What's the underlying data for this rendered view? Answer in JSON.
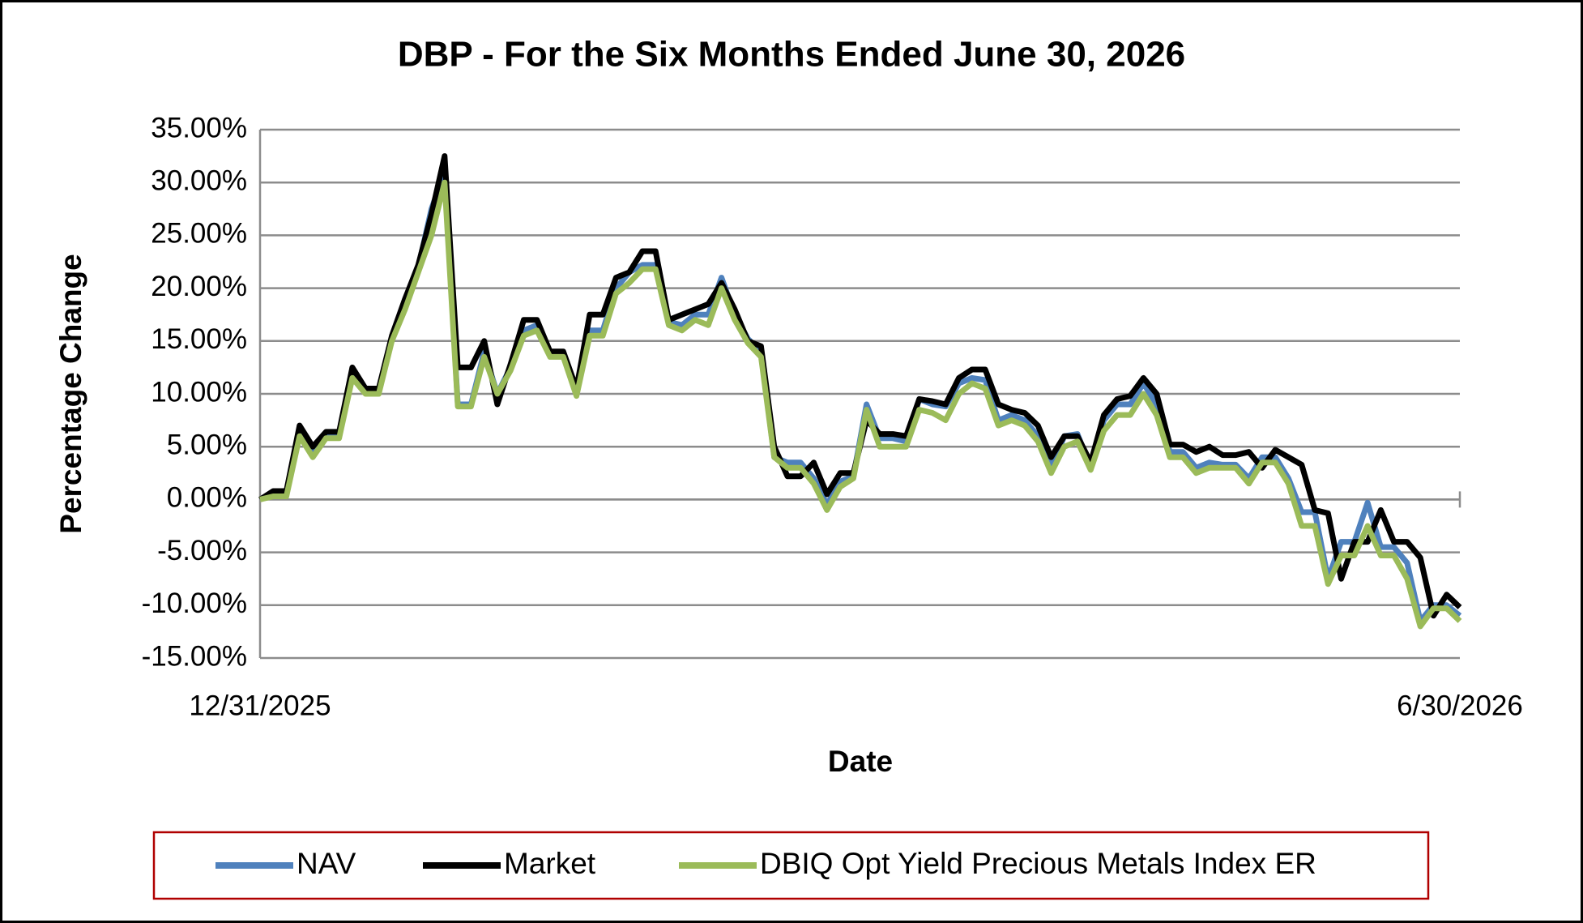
{
  "chart_data": {
    "type": "line",
    "title": "DBP - For the Six Months Ended June 30, 2026",
    "x_label": "Date",
    "y_label": "Percentage Change",
    "categories": [
      "12/31/2025",
      null,
      null,
      null,
      null,
      null,
      null,
      null,
      null,
      null,
      null,
      null,
      null,
      null,
      null,
      null,
      null,
      null,
      null,
      null,
      null,
      null,
      null,
      null,
      null,
      null,
      null,
      null,
      null,
      null,
      null,
      null,
      null,
      null,
      null,
      null,
      null,
      null,
      null,
      null,
      null,
      null,
      null,
      null,
      null,
      null,
      null,
      null,
      null,
      null,
      null,
      null,
      null,
      null,
      null,
      null,
      null,
      null,
      null,
      null,
      null,
      null,
      null,
      null,
      null,
      null,
      null,
      null,
      null,
      null,
      null,
      null,
      null,
      null,
      null,
      null,
      null,
      null,
      null,
      null,
      null,
      null,
      null,
      null,
      null,
      null,
      null,
      null,
      null,
      null,
      null,
      "6/30/2026"
    ],
    "series": [
      {
        "name": "NAV",
        "color": "#4f81bd",
        "values": [
          0,
          0.5,
          0.5,
          6.5,
          4.5,
          6,
          6,
          12,
          10.3,
          10.3,
          15.2,
          18.5,
          22,
          27.5,
          31,
          9,
          9,
          14,
          10,
          12.5,
          16,
          16.5,
          13.8,
          13.8,
          10,
          16,
          16,
          20,
          21.5,
          22.2,
          22.2,
          16.8,
          16.5,
          17.5,
          17.5,
          21,
          17.5,
          15.2,
          14,
          4,
          3.5,
          3.5,
          2,
          -0.5,
          1.7,
          2.2,
          9,
          5.8,
          5.8,
          5.5,
          9.5,
          9,
          8.8,
          11,
          11.5,
          11.3,
          7.5,
          8,
          7.5,
          6,
          3,
          6,
          6.2,
          3,
          7.5,
          9,
          9,
          11,
          9,
          4.5,
          4.5,
          3,
          3.5,
          3.3,
          3.3,
          2,
          4,
          4,
          2,
          -1.2,
          -1.2,
          -7.5,
          -4,
          -4,
          -0.3,
          -4.5,
          -4.5,
          -6,
          -11.5,
          -10,
          -10,
          -11
        ]
      },
      {
        "name": "Market",
        "color": "#000000",
        "values": [
          0,
          0.8,
          0.8,
          7,
          5,
          6.4,
          6.4,
          12.5,
          10.5,
          10.5,
          15.5,
          19,
          22.2,
          27,
          32.5,
          12.5,
          12.5,
          15,
          9,
          12.8,
          17,
          17,
          14,
          14,
          10.5,
          17.5,
          17.5,
          21,
          21.5,
          23.5,
          23.5,
          17,
          17.5,
          18,
          18.5,
          20.5,
          18,
          15,
          14.5,
          5,
          2.2,
          2.2,
          3.5,
          0.5,
          2.5,
          2.5,
          7.5,
          6.2,
          6.2,
          6,
          9.5,
          9.3,
          9,
          11.5,
          12.3,
          12.3,
          9,
          8.5,
          8.2,
          7,
          4,
          6,
          6,
          3.5,
          8,
          9.5,
          9.8,
          11.5,
          10,
          5.2,
          5.2,
          4.5,
          5,
          4.2,
          4.2,
          4.5,
          3,
          4.7,
          4,
          3.3,
          -1,
          -1.3,
          -7.5,
          -4,
          -4,
          -1,
          -4,
          -4,
          -5.5,
          -11,
          -9,
          -10.2
        ]
      },
      {
        "name": "DBIQ Opt Yield Precious Metals Index ER",
        "color": "#9bbb59",
        "values": [
          0,
          0.3,
          0.3,
          6,
          4,
          5.8,
          5.8,
          11.5,
          10,
          10,
          15,
          18,
          21.5,
          25,
          30,
          8.8,
          8.8,
          13.5,
          10,
          12.2,
          15.5,
          16,
          13.5,
          13.5,
          9.8,
          15.5,
          15.5,
          19.5,
          20.5,
          21.8,
          21.8,
          16.5,
          16,
          17,
          16.5,
          20,
          17,
          14.8,
          13.5,
          4,
          3,
          3,
          1.5,
          -1,
          1.2,
          2,
          8.5,
          5,
          5,
          5,
          8.5,
          8.2,
          7.5,
          10,
          11,
          10.5,
          7,
          7.5,
          7,
          5.5,
          2.5,
          5,
          5.5,
          2.8,
          6.5,
          8,
          8,
          10,
          8,
          4,
          4,
          2.5,
          3,
          3,
          3,
          1.5,
          3.5,
          3.5,
          1.5,
          -2.5,
          -2.5,
          -8,
          -5.3,
          -5.3,
          -2.5,
          -5.3,
          -5.3,
          -7.5,
          -12,
          -10.3,
          -10.3,
          -11.5
        ]
      }
    ],
    "ylim": [
      -15,
      35
    ],
    "yticks": [
      {
        "value": -15,
        "label": "-15.00%"
      },
      {
        "value": -10,
        "label": "-10.00%"
      },
      {
        "value": -5,
        "label": "-5.00%"
      },
      {
        "value": 0,
        "label": "0.00%"
      },
      {
        "value": 5,
        "label": "5.00%"
      },
      {
        "value": 10,
        "label": "10.00%"
      },
      {
        "value": 15,
        "label": "15.00%"
      },
      {
        "value": 20,
        "label": "20.00%"
      },
      {
        "value": 25,
        "label": "25.00%"
      },
      {
        "value": 30,
        "label": "30.00%"
      },
      {
        "value": 35,
        "label": "35.00%"
      }
    ],
    "grid": true,
    "legend": "bottom"
  }
}
